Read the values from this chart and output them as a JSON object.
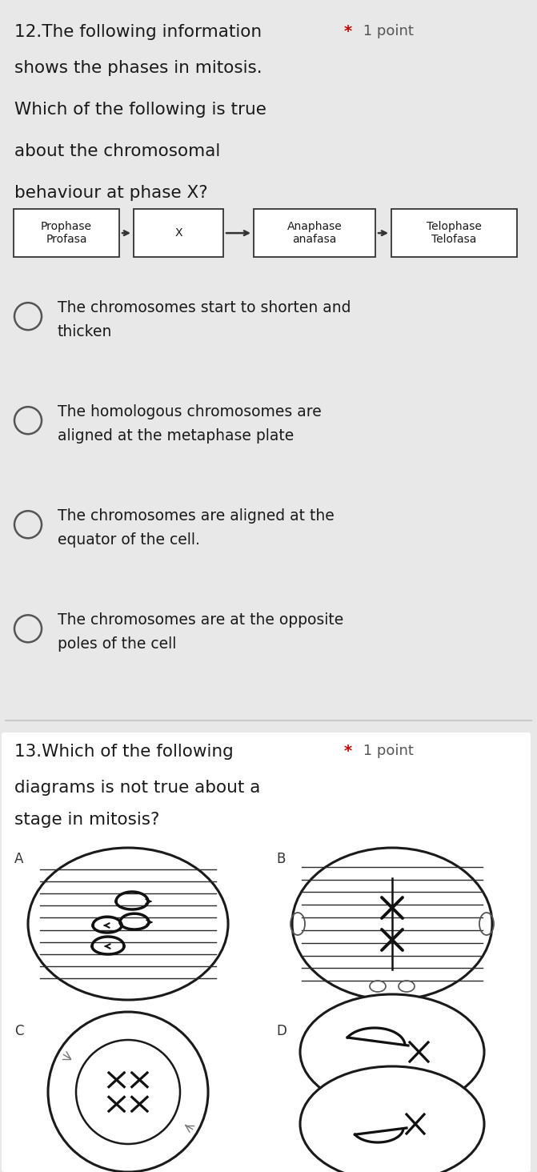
{
  "bg_color": "#e8e8e8",
  "q12_title": "12.The following information",
  "q12_point_star": "*",
  "q12_point_text": " 1 point",
  "q12_lines": [
    "shows the phases in mitosis.",
    "Which of the following is true",
    "about the chromosomal",
    "behaviour at phase X?"
  ],
  "flow_boxes": [
    {
      "label": "Prophase\nProfasa"
    },
    {
      "label": "X"
    },
    {
      "label": "Anaphase\nanafasa"
    },
    {
      "label": "Telophase\nTelofasa"
    }
  ],
  "options": [
    [
      "The chromosomes start to shorten and",
      "thicken"
    ],
    [
      "The homologous chromosomes are",
      "aligned at the metaphase plate"
    ],
    [
      "The chromosomes are aligned at the",
      "equator of the cell."
    ],
    [
      "The chromosomes are at the opposite",
      "poles of the cell"
    ]
  ],
  "q13_title": "13.Which of the following",
  "q13_point_star": "*",
  "q13_point_text": " 1 point",
  "q13_lines": [
    "diagrams is not true about a",
    "stage in mitosis?"
  ],
  "text_color": "#1a1a1a",
  "star_color": "#cc0000",
  "point_color": "#555555"
}
